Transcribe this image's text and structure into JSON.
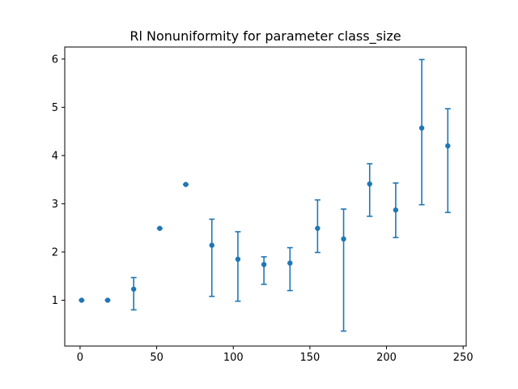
{
  "chart_data": {
    "type": "scatter",
    "title": "Rl Nonuniformity for parameter class_size",
    "xlabel": "",
    "ylabel": "",
    "xlim": [
      -10,
      252
    ],
    "ylim": [
      0.05,
      6.25
    ],
    "xticks": [
      0,
      50,
      100,
      150,
      200,
      250
    ],
    "yticks": [
      1,
      2,
      3,
      4,
      5,
      6
    ],
    "grid": false,
    "legend": "none",
    "color": "#1f77b4",
    "series": [
      {
        "points": [
          {
            "x": 1,
            "y": 1.0,
            "lo": 1.0,
            "hi": 1.0
          },
          {
            "x": 18,
            "y": 1.0,
            "lo": 1.0,
            "hi": 1.0
          },
          {
            "x": 35,
            "y": 1.23,
            "lo": 0.8,
            "hi": 1.47
          },
          {
            "x": 52,
            "y": 2.49,
            "lo": 2.49,
            "hi": 2.49
          },
          {
            "x": 69,
            "y": 3.4,
            "lo": 3.4,
            "hi": 3.4
          },
          {
            "x": 86,
            "y": 2.14,
            "lo": 1.08,
            "hi": 2.68
          },
          {
            "x": 103,
            "y": 1.85,
            "lo": 0.98,
            "hi": 2.42
          },
          {
            "x": 120,
            "y": 1.74,
            "lo": 1.33,
            "hi": 1.9
          },
          {
            "x": 137,
            "y": 1.77,
            "lo": 1.2,
            "hi": 2.09
          },
          {
            "x": 155,
            "y": 2.49,
            "lo": 1.99,
            "hi": 3.08
          },
          {
            "x": 172,
            "y": 2.27,
            "lo": 0.36,
            "hi": 2.89
          },
          {
            "x": 189,
            "y": 3.41,
            "lo": 2.74,
            "hi": 3.83
          },
          {
            "x": 206,
            "y": 2.87,
            "lo": 2.3,
            "hi": 3.43
          },
          {
            "x": 223,
            "y": 4.57,
            "lo": 2.98,
            "hi": 5.99
          },
          {
            "x": 240,
            "y": 4.2,
            "lo": 2.82,
            "hi": 4.97
          }
        ]
      }
    ]
  }
}
